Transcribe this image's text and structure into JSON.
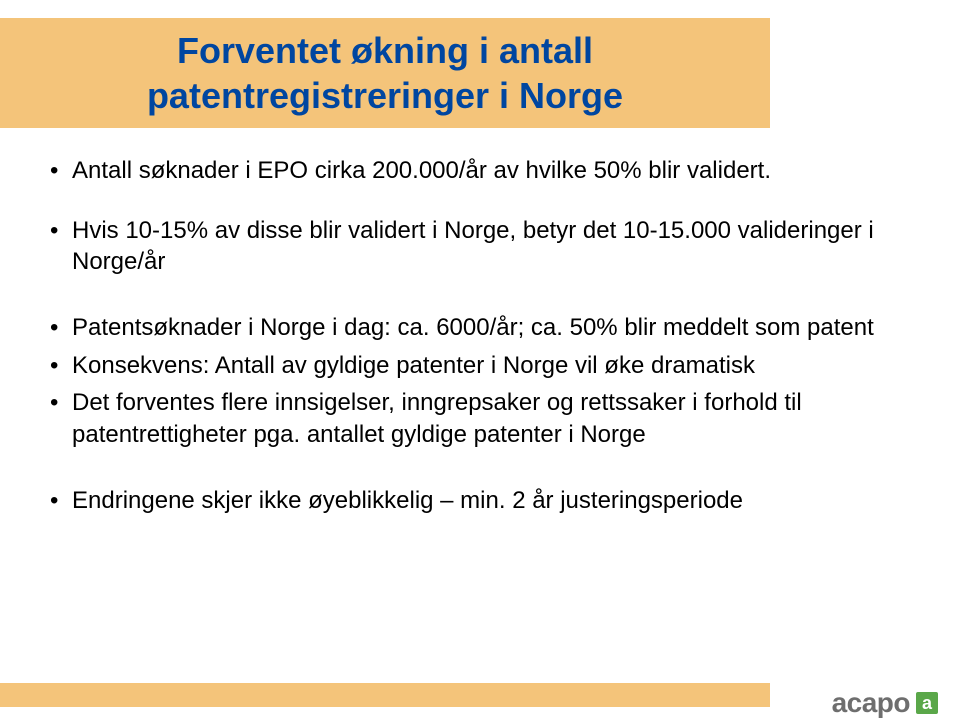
{
  "colors": {
    "title_bar_bg": "#f4c47a",
    "title_text": "#0046a0",
    "body_text": "#000000",
    "footer_bar_bg": "#f4c47a",
    "logo_text": "#6e6e6e",
    "logo_square_bg": "#5aa749",
    "logo_square_text": "#ffffff",
    "page_bg": "#ffffff"
  },
  "typography": {
    "title_fontsize": 36,
    "body_fontsize": 24,
    "logo_fontsize": 28
  },
  "title": {
    "line1": "Forventet økning i antall",
    "line2": "patentregistreringer i Norge"
  },
  "bullets": [
    "Antall søknader i EPO cirka 200.000/år  av hvilke 50% blir validert.",
    "Hvis 10-15% av disse blir validert i Norge, betyr det 10-15.000 valideringer i Norge/år",
    "Patentsøknader i Norge i dag: ca. 6000/år; ca. 50% blir meddelt som patent",
    "Konsekvens:  Antall av gyldige patenter i Norge vil øke dramatisk",
    "Det forventes flere innsigelser, inngrepsaker og rettssaker i forhold til patentrettigheter pga. antallet gyldige patenter i Norge",
    "Endringene skjer ikke øyeblikkelig – min. 2 år justeringsperiode"
  ],
  "logo": {
    "text": "acapo",
    "square_letter": "a"
  }
}
